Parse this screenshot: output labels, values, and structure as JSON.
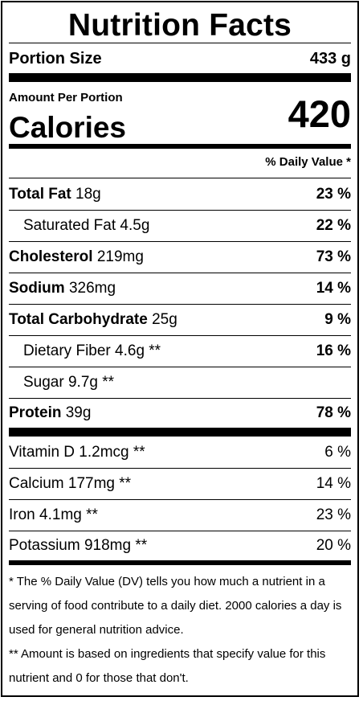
{
  "title": "Nutrition Facts",
  "portion": {
    "label": "Portion Size",
    "value": "433 g"
  },
  "amount_per_portion": "Amount Per Portion",
  "calories": {
    "label": "Calories",
    "value": "420"
  },
  "dv_header": "% Daily Value *",
  "nutrients": [
    {
      "name": "Total Fat",
      "amount": "18g",
      "dv": "23 %"
    },
    {
      "name": "Saturated Fat",
      "amount": "4.5g",
      "dv": "22 %"
    },
    {
      "name": "Cholesterol",
      "amount": "219mg",
      "dv": "73 %"
    },
    {
      "name": "Sodium",
      "amount": "326mg",
      "dv": "14 %"
    },
    {
      "name": "Total Carbohydrate",
      "amount": "25g",
      "dv": "9 %"
    },
    {
      "name": "Dietary Fiber",
      "amount": "4.6g **",
      "dv": "16 %"
    },
    {
      "name": "Sugar",
      "amount": "9.7g **",
      "dv": ""
    },
    {
      "name": "Protein",
      "amount": "39g",
      "dv": "78 %"
    }
  ],
  "vitamins": [
    {
      "name": "Vitamin D",
      "amount": "1.2mcg **",
      "dv": "6 %"
    },
    {
      "name": "Calcium",
      "amount": "177mg **",
      "dv": "14 %"
    },
    {
      "name": "Iron",
      "amount": "4.1mg **",
      "dv": "23 %"
    },
    {
      "name": "Potassium",
      "amount": "918mg **",
      "dv": "20 %"
    }
  ],
  "footnotes": [
    "* The % Daily Value (DV) tells you how much a nutrient in a serving of food contribute to a daily diet. 2000 calories a day is used for general nutrition advice.",
    "** Amount is based on ingredients that specify value for this nutrient and 0 for those that don't."
  ]
}
